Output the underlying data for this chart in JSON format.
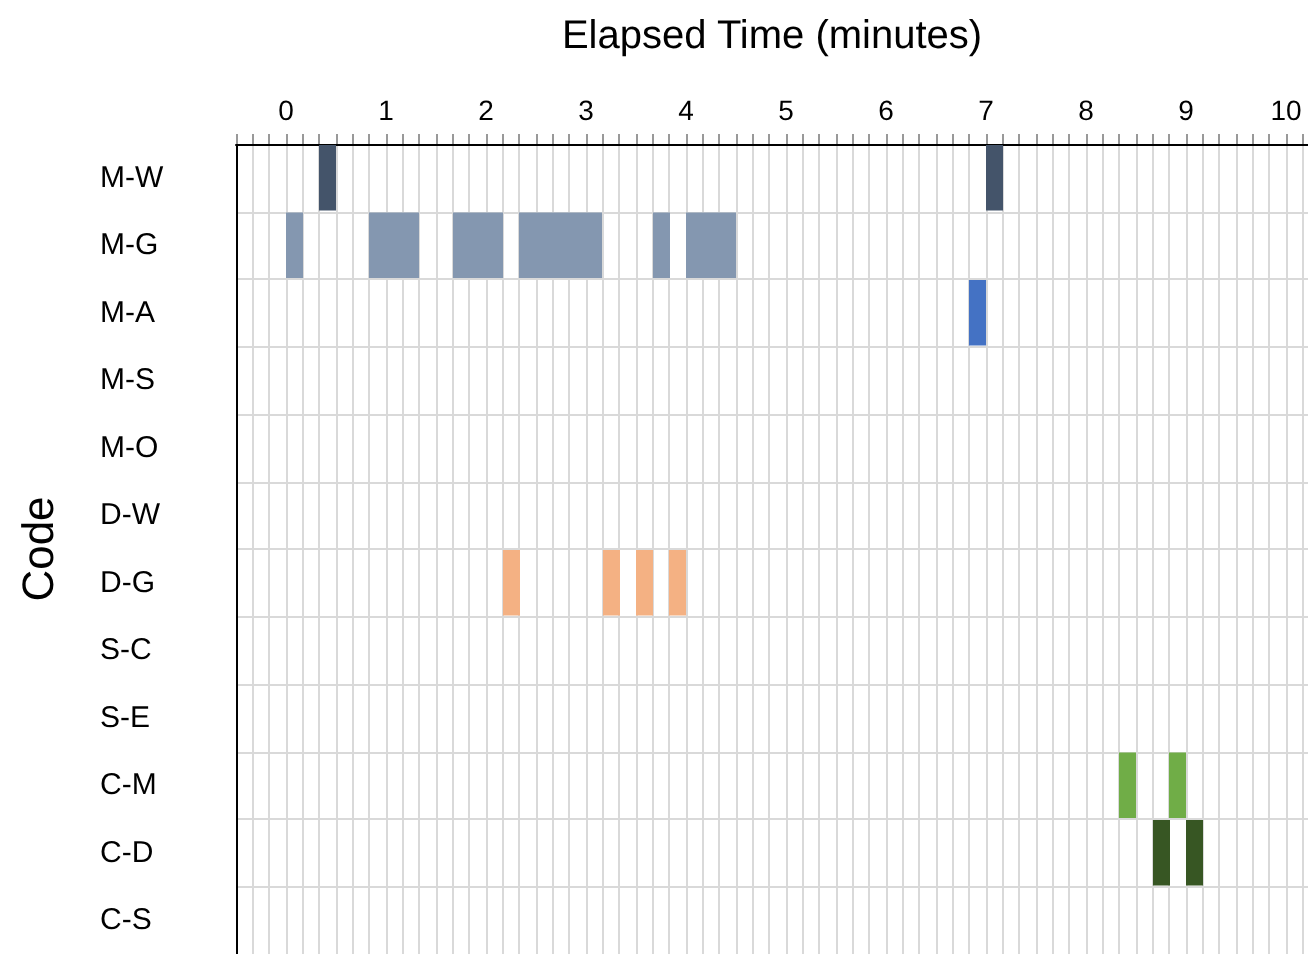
{
  "chart_data": {
    "type": "bar",
    "orientation": "horizontal",
    "xlabel": "Elapsed Time (minutes)",
    "ylabel": "Code",
    "categories": [
      "M-W",
      "M-G",
      "M-A",
      "M-S",
      "M-O",
      "D-W",
      "D-G",
      "S-C",
      "S-E",
      "C-M",
      "C-D",
      "C-S"
    ],
    "series": [
      {
        "color": "#44546a",
        "base": [
          0.83,
          null,
          null,
          null,
          null,
          null,
          null,
          null,
          null,
          null,
          null,
          null
        ],
        "values": [
          0.17,
          null,
          null,
          null,
          null,
          null,
          null,
          null,
          null,
          null,
          null,
          null
        ]
      },
      {
        "color": "#44546a",
        "base": [
          7.5,
          null,
          null,
          null,
          null,
          null,
          null,
          null,
          null,
          null,
          null,
          null
        ],
        "values": [
          0.17,
          null,
          null,
          null,
          null,
          null,
          null,
          null,
          null,
          null,
          null,
          null
        ]
      },
      {
        "color": "#8497b0",
        "base": [
          null,
          0.5,
          null,
          null,
          null,
          null,
          null,
          null,
          null,
          null,
          null,
          null
        ],
        "values": [
          null,
          0.17,
          null,
          null,
          null,
          null,
          null,
          null,
          null,
          null,
          null,
          null
        ]
      },
      {
        "color": "#8497b0",
        "base": [
          null,
          1.33,
          null,
          null,
          null,
          null,
          null,
          null,
          null,
          null,
          null,
          null
        ],
        "values": [
          null,
          0.5,
          null,
          null,
          null,
          null,
          null,
          null,
          null,
          null,
          null,
          null
        ]
      },
      {
        "color": "#8497b0",
        "base": [
          null,
          2.17,
          null,
          null,
          null,
          null,
          null,
          null,
          null,
          null,
          null,
          null
        ],
        "values": [
          null,
          0.5,
          null,
          null,
          null,
          null,
          null,
          null,
          null,
          null,
          null,
          null
        ]
      },
      {
        "color": "#8497b0",
        "base": [
          null,
          2.83,
          null,
          null,
          null,
          null,
          null,
          null,
          null,
          null,
          null,
          null
        ],
        "values": [
          null,
          0.83,
          null,
          null,
          null,
          null,
          null,
          null,
          null,
          null,
          null,
          null
        ]
      },
      {
        "color": "#8497b0",
        "base": [
          null,
          4.17,
          null,
          null,
          null,
          null,
          null,
          null,
          null,
          null,
          null,
          null
        ],
        "values": [
          null,
          0.17,
          null,
          null,
          null,
          null,
          null,
          null,
          null,
          null,
          null,
          null
        ]
      },
      {
        "color": "#8497b0",
        "base": [
          null,
          4.5,
          null,
          null,
          null,
          null,
          null,
          null,
          null,
          null,
          null,
          null
        ],
        "values": [
          null,
          0.5,
          null,
          null,
          null,
          null,
          null,
          null,
          null,
          null,
          null,
          null
        ]
      },
      {
        "color": "#4472c4",
        "base": [
          null,
          null,
          7.33,
          null,
          null,
          null,
          null,
          null,
          null,
          null,
          null,
          null
        ],
        "values": [
          null,
          null,
          0.17,
          null,
          null,
          null,
          null,
          null,
          null,
          null,
          null,
          null
        ]
      },
      {
        "color": "#f4b183",
        "base": [
          null,
          null,
          null,
          null,
          null,
          null,
          2.67,
          null,
          null,
          null,
          null,
          null
        ],
        "values": [
          null,
          null,
          null,
          null,
          null,
          null,
          0.17,
          null,
          null,
          null,
          null,
          null
        ]
      },
      {
        "color": "#f4b183",
        "base": [
          null,
          null,
          null,
          null,
          null,
          null,
          3.67,
          null,
          null,
          null,
          null,
          null
        ],
        "values": [
          null,
          null,
          null,
          null,
          null,
          null,
          0.17,
          null,
          null,
          null,
          null,
          null
        ]
      },
      {
        "color": "#f4b183",
        "base": [
          null,
          null,
          null,
          null,
          null,
          null,
          4.0,
          null,
          null,
          null,
          null,
          null
        ],
        "values": [
          null,
          null,
          null,
          null,
          null,
          null,
          0.17,
          null,
          null,
          null,
          null,
          null
        ]
      },
      {
        "color": "#f4b183",
        "base": [
          null,
          null,
          null,
          null,
          null,
          null,
          4.33,
          null,
          null,
          null,
          null,
          null
        ],
        "values": [
          null,
          null,
          null,
          null,
          null,
          null,
          0.17,
          null,
          null,
          null,
          null,
          null
        ]
      },
      {
        "color": "#70ad47",
        "base": [
          null,
          null,
          null,
          null,
          null,
          null,
          null,
          null,
          null,
          8.83,
          null,
          null
        ],
        "values": [
          null,
          null,
          null,
          null,
          null,
          null,
          null,
          null,
          null,
          0.17,
          null,
          null
        ]
      },
      {
        "color": "#70ad47",
        "base": [
          null,
          null,
          null,
          null,
          null,
          null,
          null,
          null,
          null,
          9.33,
          null,
          null
        ],
        "values": [
          null,
          null,
          null,
          null,
          null,
          null,
          null,
          null,
          null,
          0.17,
          null,
          null
        ]
      },
      {
        "color": "#375623",
        "base": [
          null,
          null,
          null,
          null,
          null,
          null,
          null,
          null,
          null,
          null,
          9.17,
          null
        ],
        "values": [
          null,
          null,
          null,
          null,
          null,
          null,
          null,
          null,
          null,
          null,
          0.17,
          null
        ]
      },
      {
        "color": "#375623",
        "base": [
          null,
          null,
          null,
          null,
          null,
          null,
          null,
          null,
          null,
          null,
          9.5,
          null
        ],
        "values": [
          null,
          null,
          null,
          null,
          null,
          null,
          null,
          null,
          null,
          null,
          0.17,
          null
        ]
      }
    ],
    "xlim": [
      0,
      10.72
    ],
    "xticks": [
      {
        "value": 0,
        "label": null
      },
      {
        "value": 0.17,
        "label": null
      },
      {
        "value": 0.33,
        "label": null
      },
      {
        "value": 0.5,
        "label": "0"
      },
      {
        "value": 0.67,
        "label": null
      },
      {
        "value": 0.83,
        "label": null
      },
      {
        "value": 1,
        "label": null
      },
      {
        "value": 1.17,
        "label": null
      },
      {
        "value": 1.33,
        "label": null
      },
      {
        "value": 1.5,
        "label": "1"
      },
      {
        "value": 1.67,
        "label": null
      },
      {
        "value": 1.83,
        "label": null
      },
      {
        "value": 2,
        "label": null
      },
      {
        "value": 2.17,
        "label": null
      },
      {
        "value": 2.33,
        "label": null
      },
      {
        "value": 2.5,
        "label": "2"
      },
      {
        "value": 2.67,
        "label": null
      },
      {
        "value": 2.83,
        "label": null
      },
      {
        "value": 3,
        "label": null
      },
      {
        "value": 3.17,
        "label": null
      },
      {
        "value": 3.33,
        "label": null
      },
      {
        "value": 3.5,
        "label": "3"
      },
      {
        "value": 3.67,
        "label": null
      },
      {
        "value": 3.83,
        "label": null
      },
      {
        "value": 4,
        "label": null
      },
      {
        "value": 4.17,
        "label": null
      },
      {
        "value": 4.33,
        "label": null
      },
      {
        "value": 4.5,
        "label": "4"
      },
      {
        "value": 4.67,
        "label": null
      },
      {
        "value": 4.83,
        "label": null
      },
      {
        "value": 5,
        "label": null
      },
      {
        "value": 5.17,
        "label": null
      },
      {
        "value": 5.33,
        "label": null
      },
      {
        "value": 5.5,
        "label": "5"
      },
      {
        "value": 5.67,
        "label": null
      },
      {
        "value": 5.83,
        "label": null
      },
      {
        "value": 6,
        "label": null
      },
      {
        "value": 6.17,
        "label": null
      },
      {
        "value": 6.33,
        "label": null
      },
      {
        "value": 6.5,
        "label": "6"
      },
      {
        "value": 6.67,
        "label": null
      },
      {
        "value": 6.83,
        "label": null
      },
      {
        "value": 7,
        "label": null
      },
      {
        "value": 7.17,
        "label": null
      },
      {
        "value": 7.33,
        "label": null
      },
      {
        "value": 7.5,
        "label": "7"
      },
      {
        "value": 7.67,
        "label": null
      },
      {
        "value": 7.83,
        "label": null
      },
      {
        "value": 8,
        "label": null
      },
      {
        "value": 8.17,
        "label": null
      },
      {
        "value": 8.33,
        "label": null
      },
      {
        "value": 8.5,
        "label": "8"
      },
      {
        "value": 8.67,
        "label": null
      },
      {
        "value": 8.83,
        "label": null
      },
      {
        "value": 9,
        "label": null
      },
      {
        "value": 9.17,
        "label": null
      },
      {
        "value": 9.33,
        "label": null
      },
      {
        "value": 9.5,
        "label": "9"
      },
      {
        "value": 9.67,
        "label": null
      },
      {
        "value": 9.83,
        "label": null
      },
      {
        "value": 10,
        "label": null
      },
      {
        "value": 10.17,
        "label": null
      },
      {
        "value": 10.33,
        "label": null
      },
      {
        "value": 10.5,
        "label": "10"
      },
      {
        "value": 10.67,
        "label": null
      }
    ],
    "grid": true
  }
}
